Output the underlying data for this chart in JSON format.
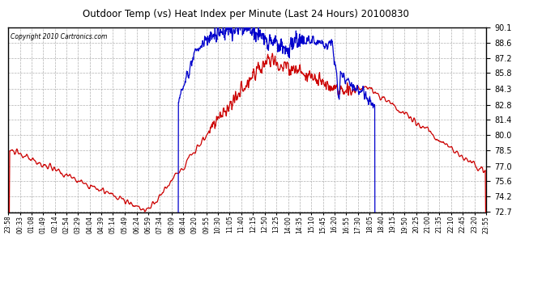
{
  "title": "Outdoor Temp (vs) Heat Index per Minute (Last 24 Hours) 20100830",
  "copyright": "Copyright 2010 Cartronics.com",
  "background_color": "#ffffff",
  "plot_background": "#ffffff",
  "grid_color": "#b0b0b0",
  "line_color_red": "#cc0000",
  "line_color_blue": "#0000cc",
  "ylim": [
    72.7,
    90.1
  ],
  "yticks": [
    72.7,
    74.2,
    75.6,
    77.0,
    78.5,
    80.0,
    81.4,
    82.8,
    84.3,
    85.8,
    87.2,
    88.6,
    90.1
  ],
  "x_labels": [
    "23:58",
    "00:33",
    "01:08",
    "01:49",
    "02:14",
    "02:54",
    "03:29",
    "04:04",
    "04:39",
    "05:14",
    "05:49",
    "06:24",
    "06:59",
    "07:34",
    "08:09",
    "08:44",
    "09:20",
    "09:55",
    "10:30",
    "11:05",
    "11:40",
    "12:15",
    "12:50",
    "13:25",
    "14:00",
    "14:35",
    "15:10",
    "15:45",
    "16:20",
    "16:55",
    "17:30",
    "18:05",
    "18:40",
    "19:15",
    "19:50",
    "20:25",
    "21:00",
    "21:35",
    "22:10",
    "22:45",
    "23:20",
    "23:55"
  ],
  "n_points": 1440,
  "red_seed": 10,
  "blue_seed": 20
}
